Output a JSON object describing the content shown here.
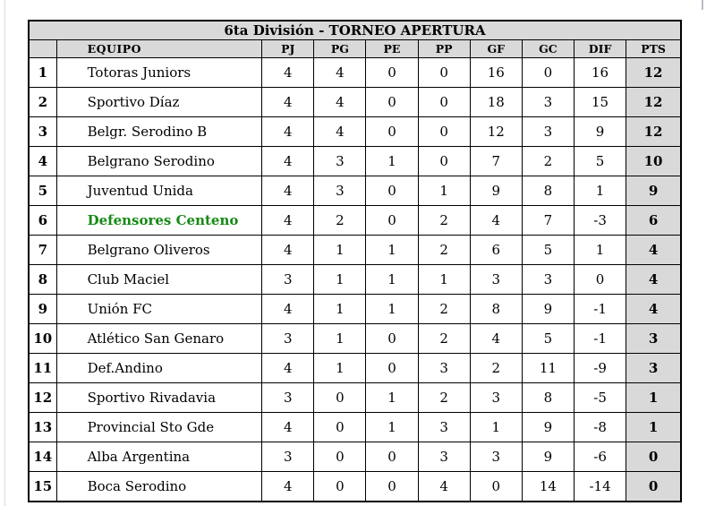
{
  "title": "6ta División - TORNEO APERTURA",
  "table": {
    "headers": {
      "pos": "",
      "equipo": "EQUIPO",
      "pj": "PJ",
      "pg": "PG",
      "pe": "PE",
      "pp": "PP",
      "gf": "GF",
      "gc": "GC",
      "dif": "DIF",
      "pts": "PTS"
    },
    "rows": [
      {
        "pos": "1",
        "equipo": "Totoras Juniors",
        "pj": "4",
        "pg": "4",
        "pe": "0",
        "pp": "0",
        "gf": "16",
        "gc": "0",
        "dif": "16",
        "pts": "12",
        "highlight": false
      },
      {
        "pos": "2",
        "equipo": "Sportivo Díaz",
        "pj": "4",
        "pg": "4",
        "pe": "0",
        "pp": "0",
        "gf": "18",
        "gc": "3",
        "dif": "15",
        "pts": "12",
        "highlight": false
      },
      {
        "pos": "3",
        "equipo": "Belgr. Serodino B",
        "pj": "4",
        "pg": "4",
        "pe": "0",
        "pp": "0",
        "gf": "12",
        "gc": "3",
        "dif": "9",
        "pts": "12",
        "highlight": false
      },
      {
        "pos": "4",
        "equipo": "Belgrano Serodino",
        "pj": "4",
        "pg": "3",
        "pe": "1",
        "pp": "0",
        "gf": "7",
        "gc": "2",
        "dif": "5",
        "pts": "10",
        "highlight": false
      },
      {
        "pos": "5",
        "equipo": "Juventud Unida",
        "pj": "4",
        "pg": "3",
        "pe": "0",
        "pp": "1",
        "gf": "9",
        "gc": "8",
        "dif": "1",
        "pts": "9",
        "highlight": false
      },
      {
        "pos": "6",
        "equipo": "Defensores Centeno",
        "pj": "4",
        "pg": "2",
        "pe": "0",
        "pp": "2",
        "gf": "4",
        "gc": "7",
        "dif": "-3",
        "pts": "6",
        "highlight": true
      },
      {
        "pos": "7",
        "equipo": "Belgrano Oliveros",
        "pj": "4",
        "pg": "1",
        "pe": "1",
        "pp": "2",
        "gf": "6",
        "gc": "5",
        "dif": "1",
        "pts": "4",
        "highlight": false
      },
      {
        "pos": "8",
        "equipo": "Club Maciel",
        "pj": "3",
        "pg": "1",
        "pe": "1",
        "pp": "1",
        "gf": "3",
        "gc": "3",
        "dif": "0",
        "pts": "4",
        "highlight": false
      },
      {
        "pos": "9",
        "equipo": "Unión FC",
        "pj": "4",
        "pg": "1",
        "pe": "1",
        "pp": "2",
        "gf": "8",
        "gc": "9",
        "dif": "-1",
        "pts": "4",
        "highlight": false
      },
      {
        "pos": "10",
        "equipo": "Atlético San Genaro",
        "pj": "3",
        "pg": "1",
        "pe": "0",
        "pp": "2",
        "gf": "4",
        "gc": "5",
        "dif": "-1",
        "pts": "3",
        "highlight": false
      },
      {
        "pos": "11",
        "equipo": "Def.Andino",
        "pj": "4",
        "pg": "1",
        "pe": "0",
        "pp": "3",
        "gf": "2",
        "gc": "11",
        "dif": "-9",
        "pts": "3",
        "highlight": false
      },
      {
        "pos": "12",
        "equipo": "Sportivo Rivadavia",
        "pj": "3",
        "pg": "0",
        "pe": "1",
        "pp": "2",
        "gf": "3",
        "gc": "8",
        "dif": "-5",
        "pts": "1",
        "highlight": false
      },
      {
        "pos": "13",
        "equipo": "Provincial Sto Gde",
        "pj": "4",
        "pg": "0",
        "pe": "1",
        "pp": "3",
        "gf": "1",
        "gc": "9",
        "dif": "-8",
        "pts": "1",
        "highlight": false
      },
      {
        "pos": "14",
        "equipo": "Alba Argentina",
        "pj": "3",
        "pg": "0",
        "pe": "0",
        "pp": "3",
        "gf": "3",
        "gc": "9",
        "dif": "-6",
        "pts": "0",
        "highlight": false
      },
      {
        "pos": "15",
        "equipo": "Boca Serodino",
        "pj": "4",
        "pg": "0",
        "pe": "0",
        "pp": "4",
        "gf": "0",
        "gc": "14",
        "dif": "-14",
        "pts": "0",
        "highlight": false
      }
    ]
  },
  "colors": {
    "header_bg": "#d9d9d9",
    "pts_bg": "#d9d9d9",
    "highlight_text": "#168a16",
    "border": "#000000"
  }
}
